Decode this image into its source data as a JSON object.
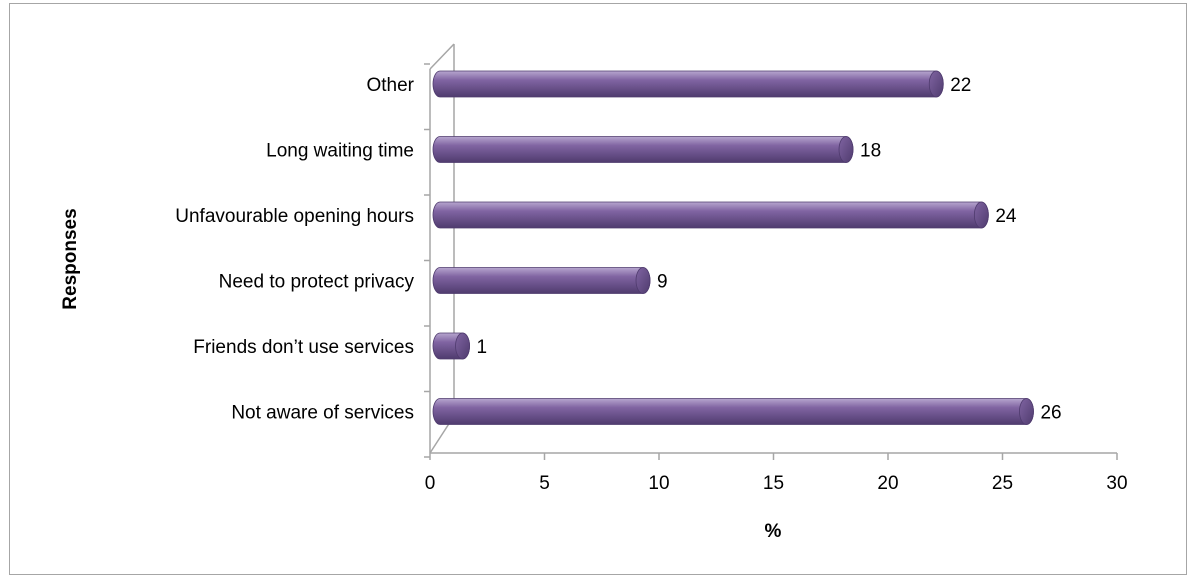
{
  "chart_data": {
    "type": "bar",
    "orientation": "horizontal",
    "style": "3d-cylinder",
    "categories": [
      "Other",
      "Long waiting time",
      "Unfavourable opening hours",
      "Need to protect privacy",
      "Friends don’t use services",
      "Not aware of services"
    ],
    "values": [
      22,
      18,
      24,
      9,
      1,
      26
    ],
    "xlabel": "%",
    "ylabel": "Responses",
    "xlim": [
      0,
      30
    ],
    "xticks": [
      "0",
      "5",
      "10",
      "15",
      "20",
      "25",
      "30"
    ],
    "grid": false,
    "legend": "none",
    "colors": {
      "bar": "#8064a2",
      "bar_light": "#b7a6cf",
      "bar_dark": "#4f3b6e",
      "axis": "#a6a6a6"
    }
  }
}
